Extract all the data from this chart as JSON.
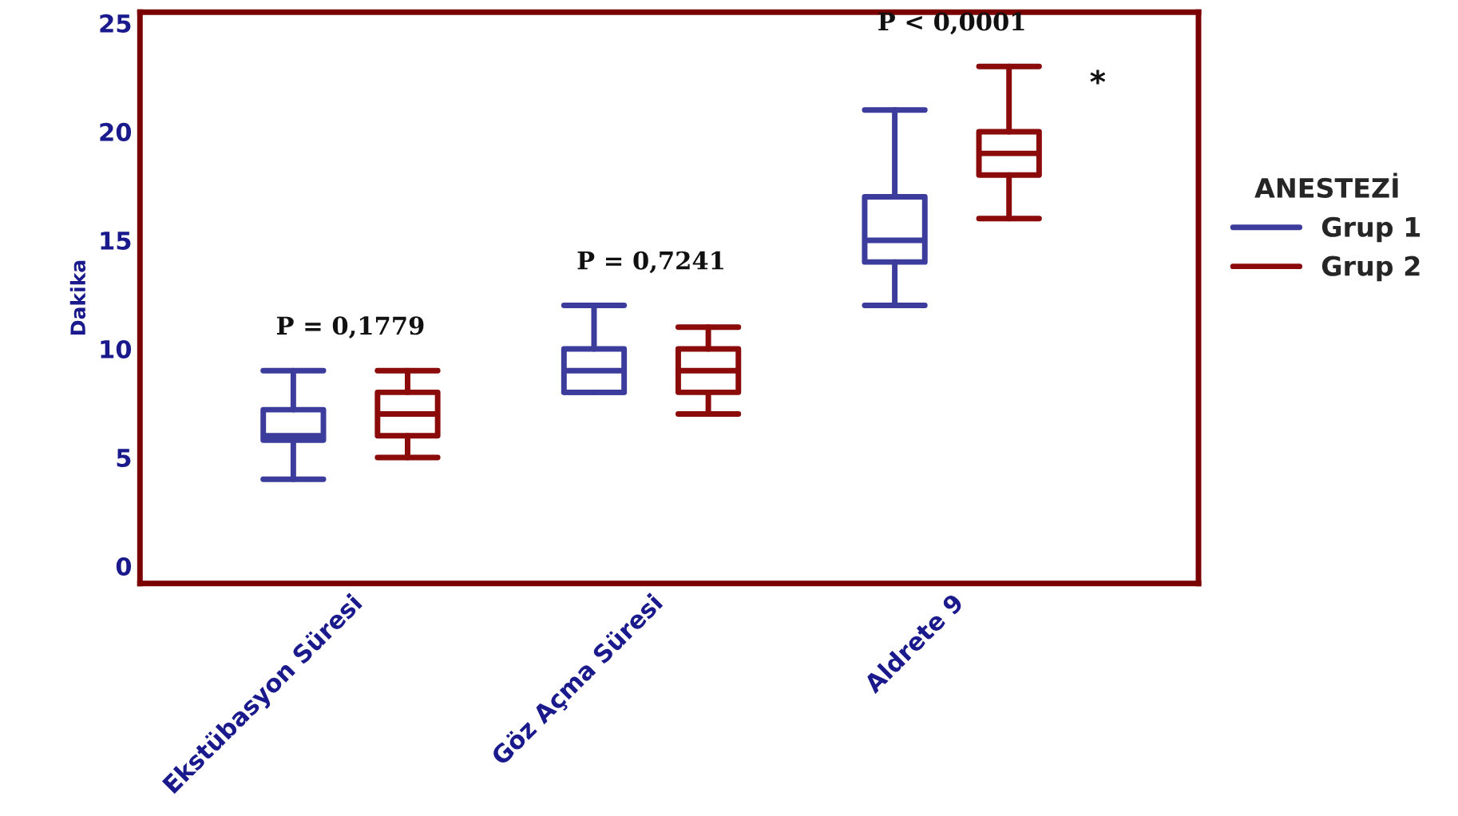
{
  "chart_data": {
    "type": "box",
    "ylabel": "Dakika",
    "legend_title": "ANESTEZİ",
    "legend": "right",
    "categories": [
      "Ekstübasyon Süresi",
      "Göz Açma Süresi",
      "Aldrete 9"
    ],
    "ylim": [
      -0.8,
      25.5
    ],
    "yticks": [
      0,
      5,
      10,
      15,
      20,
      25
    ],
    "grid": false,
    "series": [
      {
        "name": "Grup 1",
        "color": "#3c3c9c",
        "boxes": [
          {
            "low": 4,
            "q1": 5.8,
            "median": 6,
            "q3": 7.2,
            "high": 9
          },
          {
            "low": 8,
            "q1": 8,
            "median": 9,
            "q3": 10,
            "high": 12
          },
          {
            "low": 12,
            "q1": 14,
            "median": 15,
            "q3": 17,
            "high": 21
          }
        ]
      },
      {
        "name": "Grup 2",
        "color": "#8b0a0a",
        "boxes": [
          {
            "low": 5,
            "q1": 6,
            "median": 7,
            "q3": 8,
            "high": 9
          },
          {
            "low": 7,
            "q1": 8,
            "median": 9,
            "q3": 10,
            "high": 11
          },
          {
            "low": 16,
            "q1": 18,
            "median": 19,
            "q3": 20,
            "high": 23
          }
        ]
      }
    ],
    "annotations": [
      "P = 0,1779",
      "P = 0,7241",
      "P < 0,0001",
      "*"
    ]
  }
}
